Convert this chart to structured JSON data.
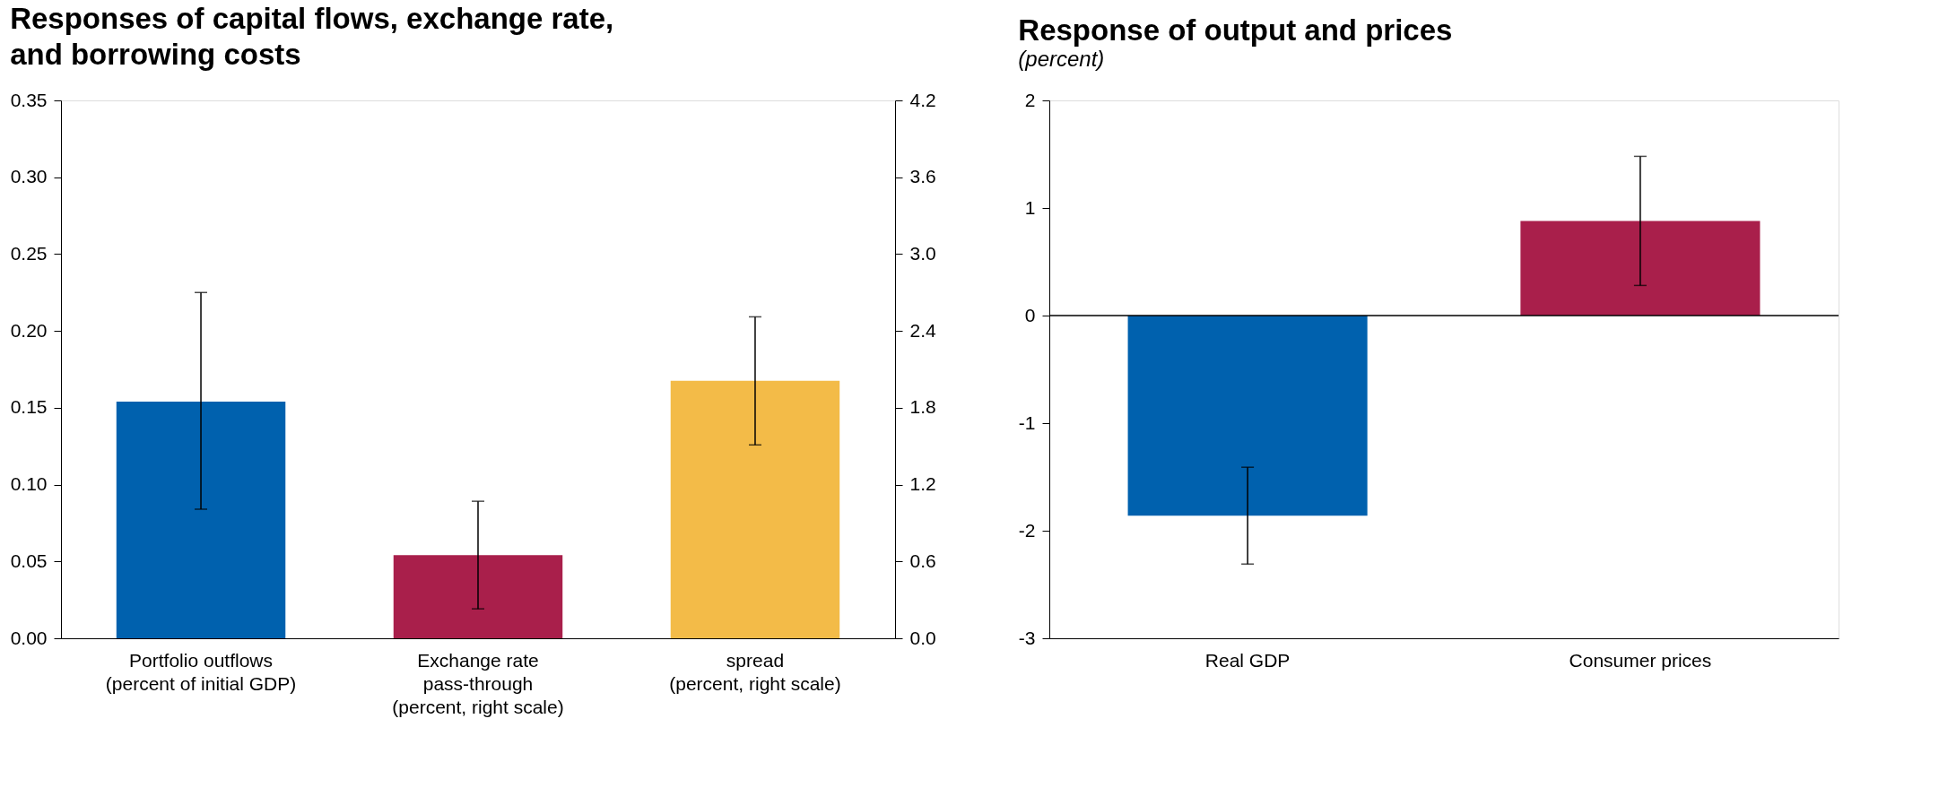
{
  "chart_data": [
    {
      "type": "bar",
      "title": "Responses of capital flows, exchange rate,\nand borrowing costs",
      "categories": [
        "Portfolio outflows\n(percent of initial GDP)",
        "Exchange rate\npass-through\n(percent, right scale)",
        "spread\n(percent, right scale)"
      ],
      "series": [
        {
          "color": "#0061ae",
          "values": [
            0.154,
            null,
            null
          ],
          "errors": [
            [
              0.084,
              0.225
            ],
            null,
            null
          ]
        },
        {
          "color": "#a91f4b",
          "axis": "y2",
          "values": [
            null,
            0.65,
            null
          ],
          "errors": [
            null,
            [
              0.23,
              1.07
            ],
            null
          ]
        },
        {
          "color": "#f3bb48",
          "axis": "y2",
          "values": [
            null,
            null,
            2.01
          ],
          "errors": [
            null,
            null,
            [
              1.51,
              2.51
            ]
          ]
        }
      ],
      "ylim": [
        0,
        0.35
      ],
      "yticks": [
        {
          "value": 0,
          "label": "0.00"
        },
        0.05,
        {
          "value": 0.1,
          "label": "0.10"
        },
        0.15,
        {
          "value": 0.2,
          "label": "0.20"
        },
        0.25,
        {
          "value": 0.3,
          "label": "0.30"
        },
        0.35
      ],
      "y2lim": [
        0,
        4.2
      ],
      "y2ticks": [
        {
          "value": 0,
          "label": "0.0"
        },
        0.6,
        1.2,
        1.8,
        2.4,
        {
          "value": 3,
          "label": "3.0"
        },
        3.6,
        4.2
      ],
      "grid": false
    },
    {
      "type": "bar",
      "title": "Response of output and prices",
      "subtitle": "(percent)",
      "categories": [
        "Real GDP",
        "Consumer prices"
      ],
      "series": [
        {
          "color": "#0061ae",
          "values": [
            -1.86,
            null
          ],
          "errors": [
            [
              -2.31,
              -1.41
            ],
            null
          ]
        },
        {
          "color": "#a91f4b",
          "values": [
            null,
            0.88
          ],
          "errors": [
            null,
            [
              0.28,
              1.48
            ]
          ]
        }
      ],
      "ylim": [
        -3,
        2
      ],
      "yticks": [
        -3,
        -2,
        -1,
        0,
        1,
        2
      ],
      "ref_lines": [
        {
          "axis": "y",
          "value": 0,
          "color": "#000000"
        }
      ],
      "grid": false
    }
  ]
}
